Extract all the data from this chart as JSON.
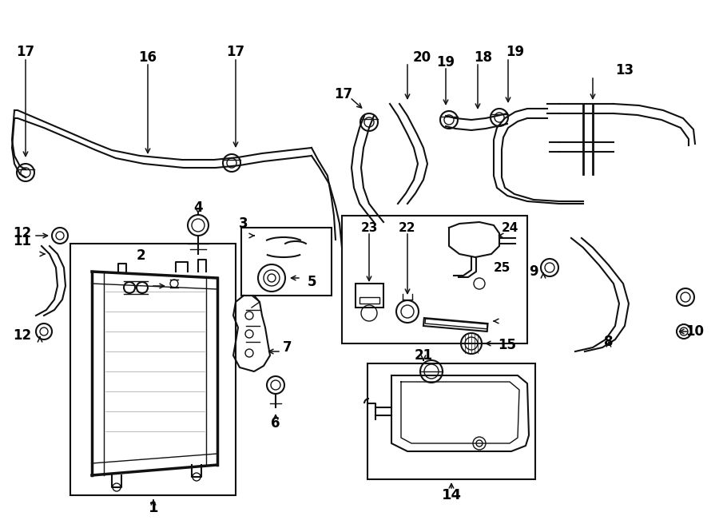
{
  "bg_color": "#ffffff",
  "line_color": "#111111",
  "text_color": "#000000",
  "fig_width": 9.0,
  "fig_height": 6.61,
  "dpi": 100
}
